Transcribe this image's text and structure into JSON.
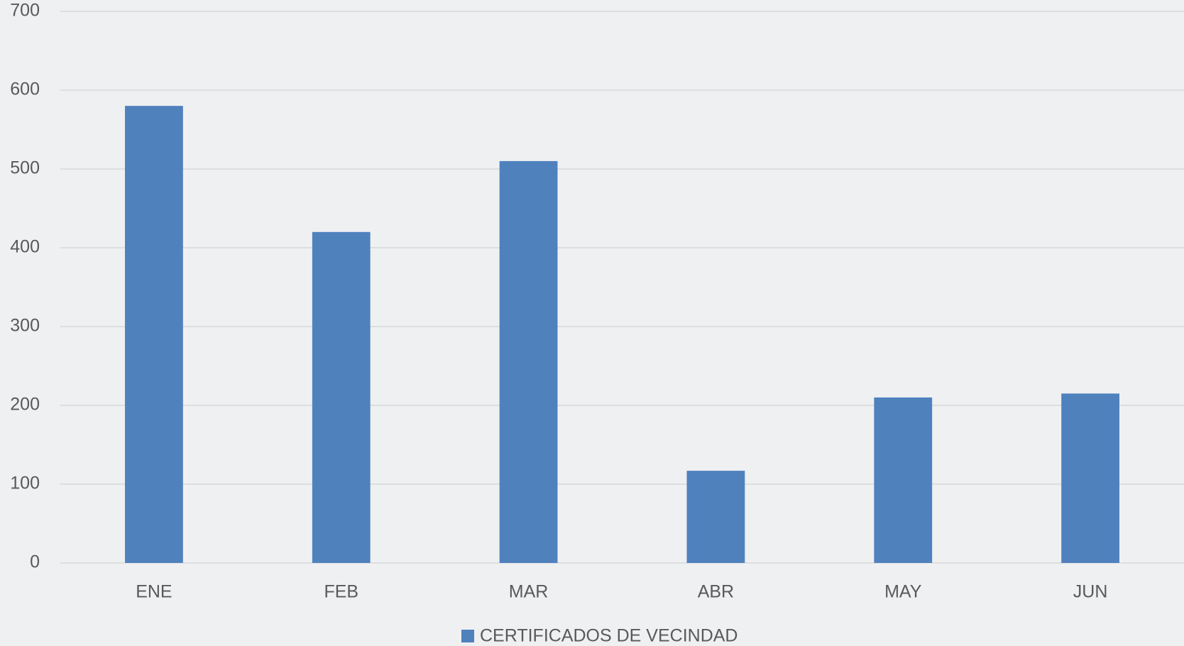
{
  "chart_data": {
    "type": "bar",
    "categories": [
      "ENE",
      "FEB",
      "MAR",
      "ABR",
      "MAY",
      "JUN"
    ],
    "series": [
      {
        "name": "CERTIFICADOS DE VECINDAD",
        "color": "#4f81bd",
        "values": [
          580,
          420,
          510,
          117,
          210,
          215
        ]
      }
    ],
    "ylim": [
      0,
      700
    ],
    "yticks": [
      0,
      100,
      200,
      300,
      400,
      500,
      600,
      700
    ],
    "grid": true,
    "legend": "bottom"
  }
}
